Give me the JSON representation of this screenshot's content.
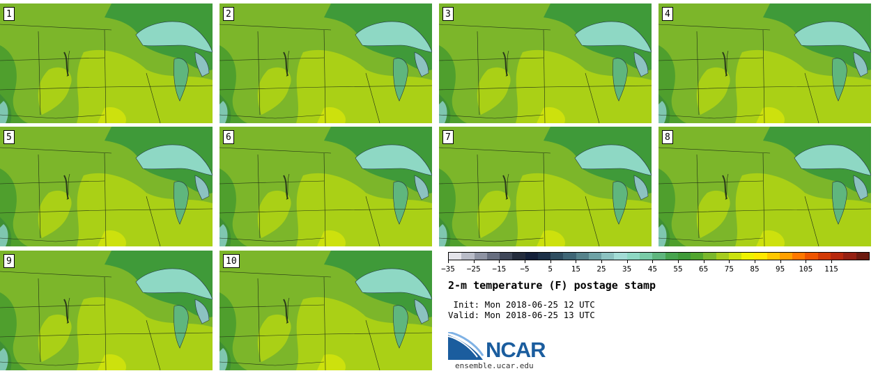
{
  "panels": [
    "1",
    "2",
    "3",
    "4",
    "5",
    "6",
    "7",
    "8",
    "9",
    "10"
  ],
  "colorbar": {
    "tick_labels": [
      "−35",
      "−25",
      "−15",
      "−5",
      "5",
      "15",
      "25",
      "35",
      "45",
      "55",
      "65",
      "75",
      "85",
      "95",
      "105",
      "115"
    ],
    "colors": [
      "#e3e3ea",
      "#b9bcc8",
      "#8e93a3",
      "#676e80",
      "#3f4759",
      "#242c3d",
      "#14203a",
      "#1c3048",
      "#2e4d60",
      "#3f6676",
      "#56838c",
      "#6ea2a6",
      "#8cc2c1",
      "#a3dcd6",
      "#8ed8c4",
      "#79cba7",
      "#5fb67e",
      "#47a44f",
      "#3f9a39",
      "#52a62f",
      "#7bb82d",
      "#a6cc1e",
      "#cbe20e",
      "#eef201",
      "#ffe800",
      "#ffc800",
      "#ffa000",
      "#ff7800",
      "#ee5400",
      "#d23a06",
      "#b7280d",
      "#952012",
      "#6c1a10"
    ],
    "min": -35,
    "max": 120
  },
  "title": "2-m temperature (F) postage stamp",
  "init": " Init: Mon 2018-06-25 12 UTC",
  "valid": "Valid: Mon 2018-06-25 13 UTC",
  "logo_text": "NCAR",
  "site": "ensemble.ucar.edu"
}
